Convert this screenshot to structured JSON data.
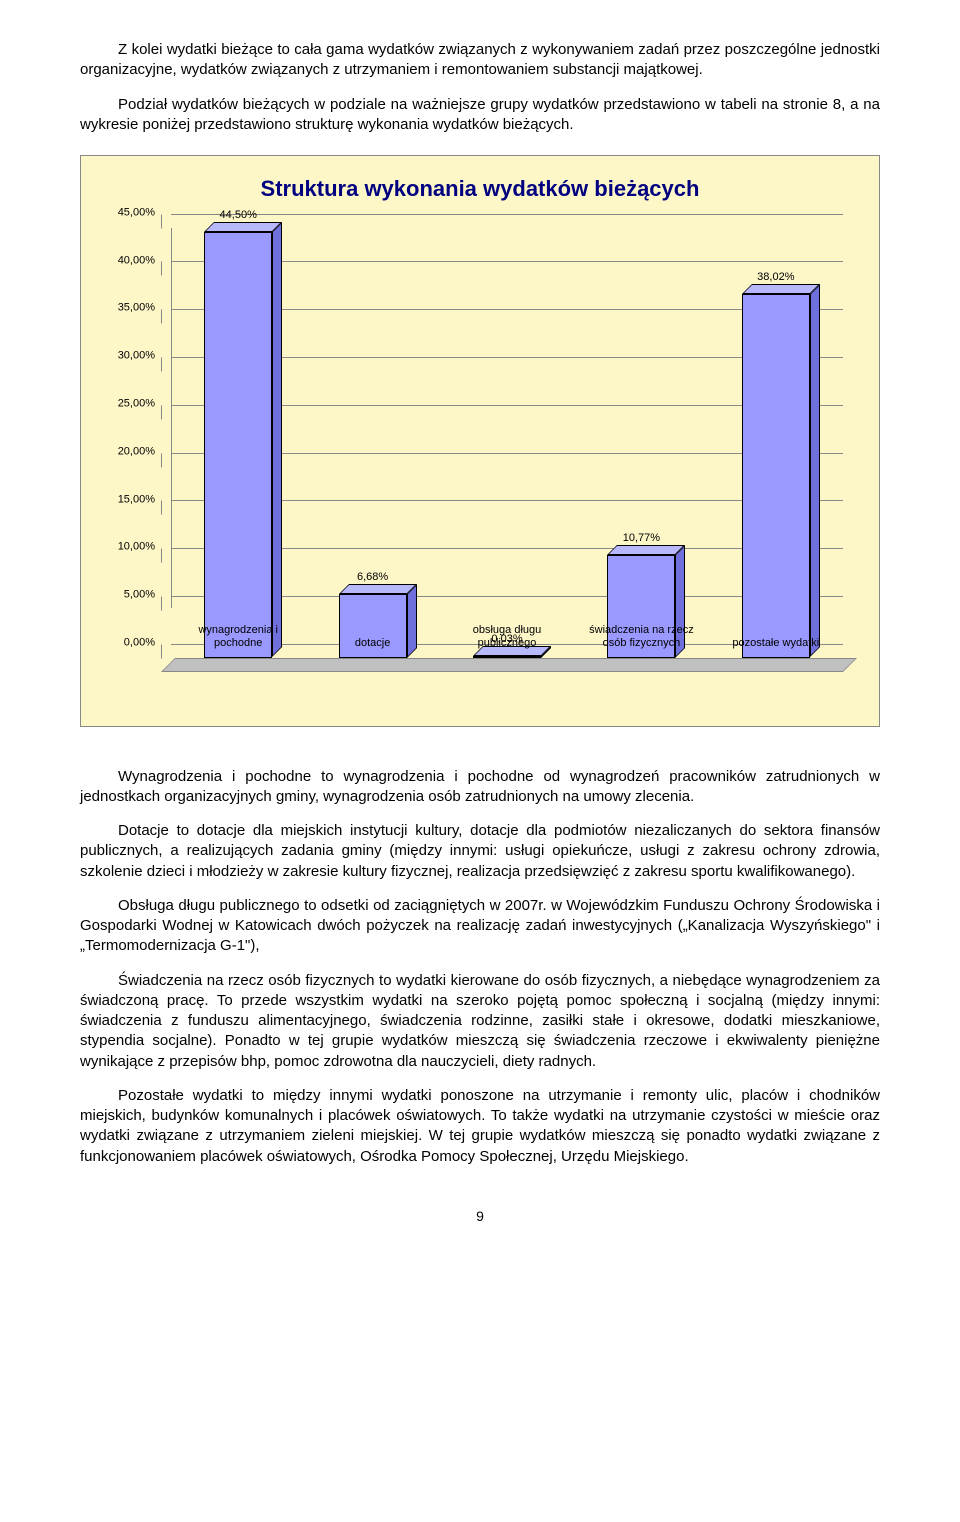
{
  "paragraphs": {
    "intro1": "Z kolei wydatki bieżące to cała gama wydatków związanych z wykonywaniem zadań przez poszczególne jednostki organizacyjne, wydatków związanych z utrzymaniem i remontowaniem substancji majątkowej.",
    "intro2": "Podział wydatków bieżących w podziale na ważniejsze grupy wydatków przedstawiono w tabeli na stronie 8, a na wykresie poniżej przedstawiono strukturę wykonania wydatków bieżących.",
    "p1": "Wynagrodzenia i pochodne to wynagrodzenia i pochodne od wynagrodzeń pracowników zatrudnionych w jednostkach organizacyjnych gminy, wynagrodzenia osób zatrudnionych na umowy zlecenia.",
    "p2": "Dotacje to dotacje dla miejskich instytucji kultury, dotacje dla podmiotów niezaliczanych do sektora finansów publicznych, a realizujących zadania gminy (między innymi: usługi opiekuńcze, usługi z zakresu ochrony zdrowia, szkolenie dzieci i młodzieży w zakresie kultury fizycznej, realizacja przedsięwzięć z zakresu sportu kwalifikowanego).",
    "p3": "Obsługa długu publicznego to odsetki od zaciągniętych w 2007r. w Wojewódzkim Funduszu Ochrony Środowiska i Gospodarki Wodnej w Katowicach dwóch pożyczek na realizację zadań inwestycyjnych („Kanalizacja Wyszyńskiego\" i „Termomodernizacja G-1\"),",
    "p4": "Świadczenia na rzecz osób fizycznych to wydatki kierowane do osób fizycznych, a niebędące wynagrodzeniem za świadczoną pracę. To przede wszystkim wydatki na szeroko pojętą pomoc społeczną i socjalną (między innymi: świadczenia z funduszu alimentacyjnego, świadczenia rodzinne, zasiłki stałe i okresowe, dodatki mieszkaniowe, stypendia socjalne). Ponadto w tej grupie wydatków mieszczą się świadczenia rzeczowe i ekwiwalenty pieniężne wynikające z przepisów bhp, pomoc zdrowotna dla nauczycieli, diety radnych.",
    "p5": "Pozostałe wydatki to między innymi wydatki ponoszone na utrzymanie i remonty ulic, placów i chodników miejskich, budynków komunalnych i placówek oświatowych. To także wydatki na utrzymanie czystości w mieście oraz wydatki związane z utrzymaniem zieleni miejskiej. W tej grupie wydatków mieszczą się ponadto wydatki związane z funkcjonowaniem placówek oświatowych, Ośrodka Pomocy Społecznej, Urzędu Miejskiego."
  },
  "chart": {
    "title": "Struktura wykonania wydatków bieżących",
    "type": "bar",
    "background_color": "#fdf7c8",
    "bar_color_front": "#9999ff",
    "bar_color_top": "#b8b8ff",
    "bar_color_side": "#7070dd",
    "floor_color": "#c0c0c0",
    "title_color": "#000080",
    "title_fontsize": 22,
    "label_fontsize": 11,
    "ylim_max": 45,
    "ytick_step": 5,
    "yticks": [
      "0,00%",
      "5,00%",
      "10,00%",
      "15,00%",
      "20,00%",
      "25,00%",
      "30,00%",
      "35,00%",
      "40,00%",
      "45,00%"
    ],
    "categories": [
      "wynagrodzenia i pochodne",
      "dotacje",
      "obsługa długu publicznego",
      "świadczenia na rzecz osób fizycznych",
      "pozostałe wydatki"
    ],
    "values": [
      44.5,
      6.68,
      0.03,
      10.77,
      38.02
    ],
    "value_labels": [
      "44,50%",
      "6,68%",
      "0,03%",
      "10,77%",
      "38,02%"
    ]
  },
  "page_number": "9"
}
